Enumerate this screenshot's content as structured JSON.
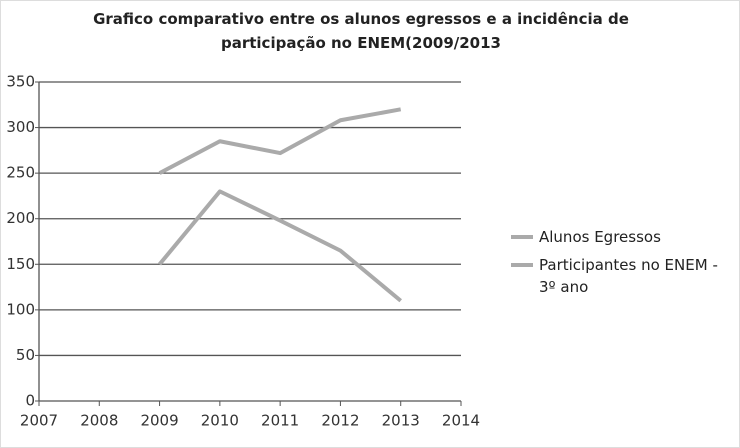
{
  "chart_data": {
    "type": "line",
    "title": "Grafico comparativo entre os alunos egressos e a incidência de participação no ENEM(2009/2013",
    "x": [
      2009,
      2010,
      2011,
      2012,
      2013
    ],
    "series": [
      {
        "name": "Alunos Egressos",
        "color": "#aaaaaa",
        "values": [
          250,
          285,
          272,
          308,
          320
        ]
      },
      {
        "name": "Participantes no ENEM - 3º ano",
        "color": "#aaaaaa",
        "values": [
          150,
          230,
          198,
          165,
          110
        ]
      }
    ],
    "xlim": [
      2007,
      2014
    ],
    "xticks": [
      2007,
      2008,
      2009,
      2010,
      2011,
      2012,
      2013,
      2014
    ],
    "ylim": [
      0,
      350
    ],
    "yticks": [
      0,
      50,
      100,
      150,
      200,
      250,
      300,
      350
    ],
    "grid": true,
    "legend": "right"
  }
}
